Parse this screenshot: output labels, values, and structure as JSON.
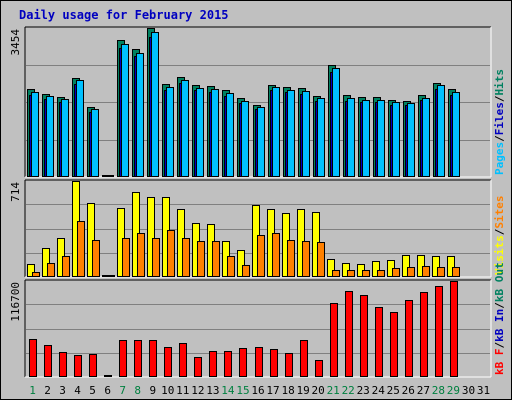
{
  "title": "Daily usage for February 2015",
  "chart_data": [
    {
      "type": "bar",
      "panel": "pages-files-hits",
      "ymax_label": "3454",
      "ylim": [
        0,
        3454
      ],
      "grid": true,
      "right_labels": [
        {
          "text": "Pages",
          "color": "#00c0ff"
        },
        {
          "text": "Files",
          "color": "#0000c0"
        },
        {
          "text": "Hits",
          "color": "#008060"
        }
      ],
      "series": [
        {
          "name": "Hits",
          "color": "#008060",
          "values": [
            2020,
            1920,
            1840,
            2290,
            1610,
            0,
            3170,
            2970,
            3454,
            2140,
            2310,
            2130,
            2090,
            2000,
            1810,
            1660,
            2130,
            2080,
            2050,
            1870,
            2580,
            1880,
            1840,
            1840,
            1770,
            1760,
            1890,
            2180,
            2030,
            null,
            null
          ]
        },
        {
          "name": "Files",
          "color": "#0000c0",
          "values": [
            1900,
            1800,
            1720,
            2150,
            1500,
            0,
            2980,
            2800,
            3250,
            2000,
            2170,
            2000,
            1960,
            1870,
            1700,
            1560,
            2000,
            1950,
            1920,
            1750,
            2420,
            1760,
            1720,
            1720,
            1660,
            1650,
            1770,
            2040,
            1900,
            null,
            null
          ]
        },
        {
          "name": "Pages",
          "color": "#00c0ff",
          "values": [
            1960,
            1870,
            1790,
            2230,
            1560,
            0,
            3070,
            2860,
            3370,
            2080,
            2250,
            2060,
            2030,
            1940,
            1760,
            1610,
            2070,
            2010,
            1990,
            1820,
            2520,
            1830,
            1780,
            1780,
            1720,
            1700,
            1830,
            2120,
            1970,
            null,
            null
          ]
        }
      ]
    },
    {
      "type": "bar",
      "panel": "visits-sites",
      "ymax_label": "714",
      "ylim": [
        0,
        714
      ],
      "grid": true,
      "right_labels": [
        {
          "text": "Visits",
          "color": "#ffff00"
        },
        {
          "text": "Sites",
          "color": "#ff8000"
        }
      ],
      "series": [
        {
          "name": "Visits",
          "color": "#ffff00",
          "values": [
            90,
            212,
            286,
            714,
            545,
            10,
            510,
            632,
            597,
            590,
            505,
            402,
            392,
            264,
            199,
            536,
            502,
            470,
            507,
            482,
            127,
            100,
            90,
            112,
            120,
            155,
            160,
            153,
            150,
            null,
            null
          ]
        },
        {
          "name": "Sites",
          "color": "#ff8000",
          "values": [
            30,
            100,
            150,
            416,
            272,
            5,
            282,
            320,
            286,
            347,
            283,
            262,
            262,
            153,
            83,
            308,
            320,
            273,
            262,
            257,
            45,
            45,
            45,
            45,
            60,
            65,
            75,
            65,
            65,
            null,
            null
          ]
        }
      ]
    },
    {
      "type": "bar",
      "panel": "kbytes",
      "ymax_label": "116700",
      "ylim": [
        0,
        116700
      ],
      "grid": true,
      "right_labels": [
        {
          "text": "kB F",
          "color": "#ff0000"
        },
        {
          "text": "kB In",
          "color": "#0000c0"
        },
        {
          "text": "kB Out",
          "color": "#008060"
        }
      ],
      "series": [
        {
          "name": "kB F",
          "color": "#ff0000",
          "values": [
            45800,
            38000,
            29900,
            25200,
            27100,
            1200,
            43900,
            43900,
            43900,
            36000,
            40100,
            23000,
            31000,
            30300,
            34000,
            35100,
            33200,
            28800,
            44000,
            19800,
            90000,
            104000,
            99500,
            84400,
            79200,
            93100,
            102700,
            110500,
            116700,
            null,
            null
          ]
        }
      ]
    }
  ],
  "days": [
    {
      "label": "1",
      "weekend": true
    },
    {
      "label": "2",
      "weekend": false
    },
    {
      "label": "3",
      "weekend": false
    },
    {
      "label": "4",
      "weekend": false
    },
    {
      "label": "5",
      "weekend": false
    },
    {
      "label": "6",
      "weekend": false
    },
    {
      "label": "7",
      "weekend": true
    },
    {
      "label": "8",
      "weekend": true
    },
    {
      "label": "9",
      "weekend": false
    },
    {
      "label": "10",
      "weekend": false
    },
    {
      "label": "11",
      "weekend": false
    },
    {
      "label": "12",
      "weekend": false
    },
    {
      "label": "13",
      "weekend": false
    },
    {
      "label": "14",
      "weekend": true
    },
    {
      "label": "15",
      "weekend": true
    },
    {
      "label": "16",
      "weekend": false
    },
    {
      "label": "17",
      "weekend": false
    },
    {
      "label": "18",
      "weekend": false
    },
    {
      "label": "19",
      "weekend": false
    },
    {
      "label": "20",
      "weekend": false
    },
    {
      "label": "21",
      "weekend": true
    },
    {
      "label": "22",
      "weekend": true
    },
    {
      "label": "23",
      "weekend": false
    },
    {
      "label": "24",
      "weekend": false
    },
    {
      "label": "25",
      "weekend": false
    },
    {
      "label": "26",
      "weekend": false
    },
    {
      "label": "27",
      "weekend": false
    },
    {
      "label": "28",
      "weekend": true
    },
    {
      "label": "29",
      "weekend": true
    },
    {
      "label": "30",
      "weekend": false
    },
    {
      "label": "31",
      "weekend": false
    }
  ],
  "colors": {
    "background": "#c0c0c0",
    "panel": "#c0c0c0",
    "gridline": "#808080",
    "title": "#0000c0",
    "weekday": "#000000",
    "weekend": "#008040"
  }
}
